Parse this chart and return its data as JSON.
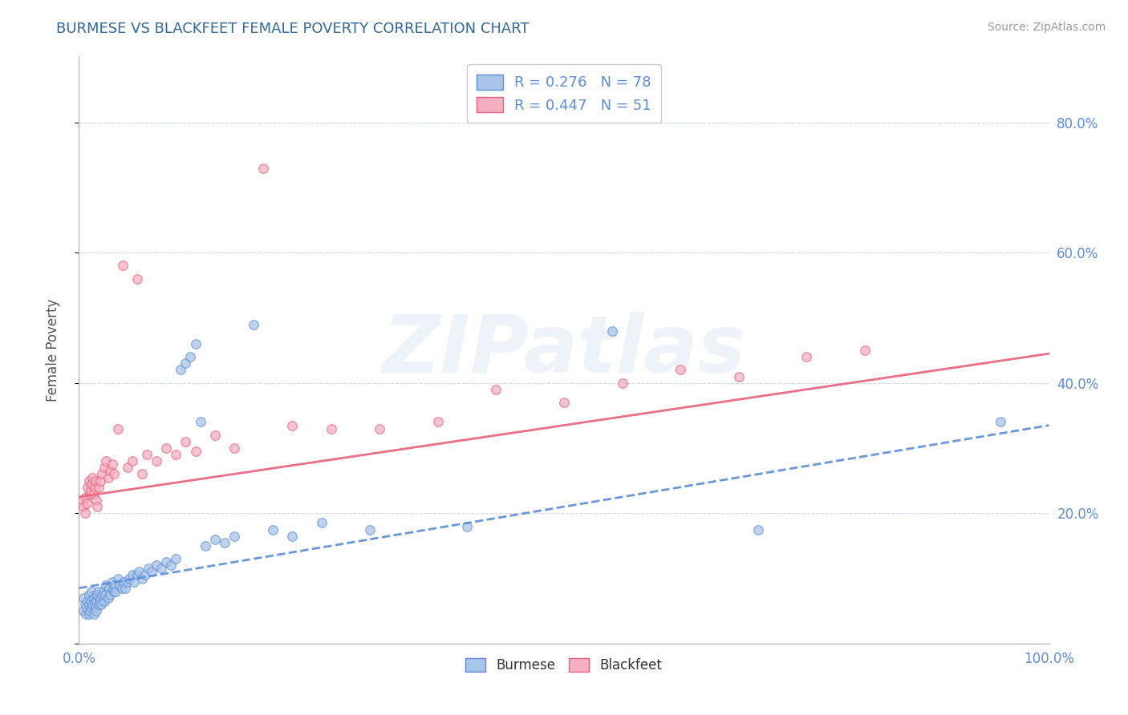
{
  "title": "BURMESE VS BLACKFEET FEMALE POVERTY CORRELATION CHART",
  "source": "Source: ZipAtlas.com",
  "ylabel": "Female Poverty",
  "watermark": "ZIPatlas",
  "burmese_R": 0.276,
  "burmese_N": 78,
  "blackfeet_R": 0.447,
  "blackfeet_N": 51,
  "burmese_color": "#a8c4e8",
  "blackfeet_color": "#f4afc0",
  "burmese_line_color": "#5b8dd9",
  "blackfeet_line_color": "#e8607a",
  "background_color": "#ffffff",
  "grid_color": "#d0d8e8",
  "title_color": "#336699",
  "tick_label_color": "#5b8dd9",
  "axis_color": "#aaaaaa",
  "marker_size": 70,
  "marker_alpha": 0.75,
  "xlim": [
    0.0,
    1.0
  ],
  "ylim": [
    0.0,
    0.9
  ],
  "burmese_x": [
    0.005,
    0.005,
    0.006,
    0.007,
    0.008,
    0.009,
    0.01,
    0.01,
    0.01,
    0.011,
    0.012,
    0.013,
    0.013,
    0.014,
    0.015,
    0.015,
    0.016,
    0.017,
    0.017,
    0.018,
    0.018,
    0.019,
    0.02,
    0.02,
    0.021,
    0.022,
    0.023,
    0.024,
    0.025,
    0.026,
    0.027,
    0.028,
    0.03,
    0.031,
    0.032,
    0.034,
    0.035,
    0.036,
    0.037,
    0.038,
    0.04,
    0.042,
    0.044,
    0.046,
    0.048,
    0.05,
    0.052,
    0.055,
    0.057,
    0.06,
    0.062,
    0.065,
    0.068,
    0.072,
    0.075,
    0.08,
    0.085,
    0.09,
    0.095,
    0.1,
    0.105,
    0.11,
    0.115,
    0.12,
    0.125,
    0.13,
    0.14,
    0.15,
    0.16,
    0.18,
    0.2,
    0.22,
    0.25,
    0.3,
    0.4,
    0.55,
    0.7,
    0.95
  ],
  "burmese_y": [
    0.05,
    0.07,
    0.06,
    0.045,
    0.055,
    0.065,
    0.045,
    0.06,
    0.075,
    0.05,
    0.065,
    0.055,
    0.08,
    0.06,
    0.045,
    0.07,
    0.06,
    0.055,
    0.075,
    0.05,
    0.065,
    0.075,
    0.06,
    0.08,
    0.065,
    0.07,
    0.06,
    0.075,
    0.08,
    0.065,
    0.075,
    0.09,
    0.07,
    0.085,
    0.075,
    0.095,
    0.085,
    0.08,
    0.09,
    0.08,
    0.1,
    0.09,
    0.085,
    0.095,
    0.085,
    0.095,
    0.1,
    0.105,
    0.095,
    0.105,
    0.11,
    0.1,
    0.105,
    0.115,
    0.11,
    0.12,
    0.115,
    0.125,
    0.12,
    0.13,
    0.42,
    0.43,
    0.44,
    0.46,
    0.34,
    0.15,
    0.16,
    0.155,
    0.165,
    0.49,
    0.175,
    0.165,
    0.185,
    0.175,
    0.18,
    0.48,
    0.175,
    0.34
  ],
  "blackfeet_x": [
    0.004,
    0.005,
    0.006,
    0.007,
    0.008,
    0.009,
    0.01,
    0.011,
    0.012,
    0.013,
    0.014,
    0.015,
    0.016,
    0.017,
    0.018,
    0.019,
    0.02,
    0.022,
    0.024,
    0.026,
    0.028,
    0.03,
    0.032,
    0.034,
    0.036,
    0.04,
    0.045,
    0.05,
    0.055,
    0.06,
    0.065,
    0.07,
    0.08,
    0.09,
    0.1,
    0.11,
    0.12,
    0.14,
    0.16,
    0.19,
    0.22,
    0.26,
    0.31,
    0.37,
    0.43,
    0.5,
    0.56,
    0.62,
    0.68,
    0.75,
    0.81
  ],
  "blackfeet_y": [
    0.22,
    0.21,
    0.2,
    0.225,
    0.215,
    0.24,
    0.25,
    0.23,
    0.235,
    0.245,
    0.255,
    0.23,
    0.24,
    0.25,
    0.22,
    0.21,
    0.24,
    0.25,
    0.26,
    0.27,
    0.28,
    0.255,
    0.265,
    0.275,
    0.26,
    0.33,
    0.58,
    0.27,
    0.28,
    0.56,
    0.26,
    0.29,
    0.28,
    0.3,
    0.29,
    0.31,
    0.295,
    0.32,
    0.3,
    0.73,
    0.335,
    0.33,
    0.33,
    0.34,
    0.39,
    0.37,
    0.4,
    0.42,
    0.41,
    0.44,
    0.45
  ],
  "burmese_trend_x0": 0.0,
  "burmese_trend_y0": 0.085,
  "burmese_trend_x1": 1.0,
  "burmese_trend_y1": 0.335,
  "blackfeet_trend_x0": 0.0,
  "blackfeet_trend_y0": 0.225,
  "blackfeet_trend_x1": 1.0,
  "blackfeet_trend_y1": 0.445,
  "yticks": [
    0.0,
    0.2,
    0.4,
    0.6,
    0.8
  ],
  "ytick_labels": [
    "",
    "20.0%",
    "40.0%",
    "60.0%",
    "80.0%"
  ],
  "xtick_show": [
    0.0,
    1.0
  ],
  "xtick_show_labels": [
    "0.0%",
    "100.0%"
  ]
}
